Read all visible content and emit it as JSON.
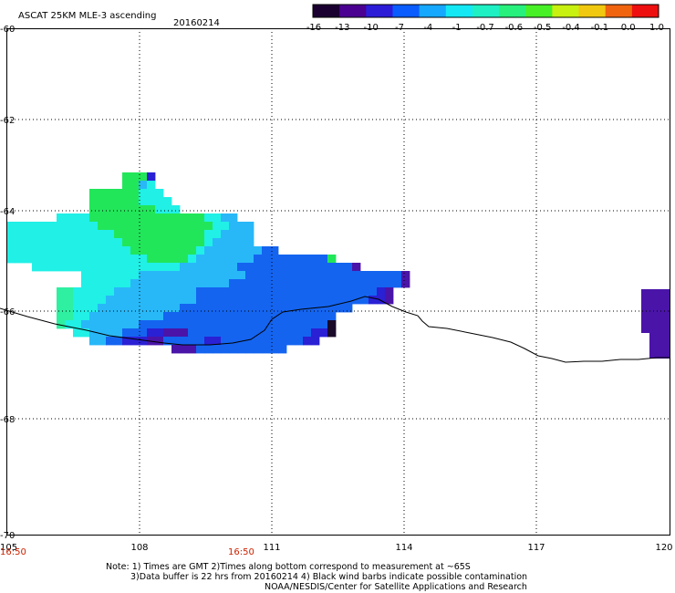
{
  "header": {
    "title": "ASCAT 25KM MLE-3 ascending",
    "date": "20160214"
  },
  "colorbar": {
    "labels": [
      "-16",
      "-13",
      "-10",
      "-7",
      "-4",
      "-1",
      "-0.7",
      "-0.6",
      "-0.5",
      "-0.4",
      "-0.1",
      "0.0",
      "1.0"
    ],
    "colors": [
      "#1a0030",
      "#4a0090",
      "#2c1cd8",
      "#0a5cff",
      "#16a8ff",
      "#14e8f4",
      "#1ef0c4",
      "#28f07c",
      "#48f028",
      "#c8f010",
      "#f0c810",
      "#f06410",
      "#ee1010"
    ]
  },
  "axes": {
    "lon_labels": [
      "105",
      "108",
      "111",
      "114",
      "117",
      "120"
    ],
    "lat_labels": [
      "-60",
      "-62",
      "-64",
      "-66",
      "-68",
      "-70"
    ],
    "time_labels": [
      "16:50",
      "16:50"
    ]
  },
  "notes": {
    "line1": "Note: 1) Times are GMT 2)Times along bottom correspond to measurement at ~65S",
    "line2": "3)Data buffer is 22 hrs from 20160214 4) Black wind barbs indicate possible contamination",
    "line3": "NOAA/NESDIS/Center for Satellite Applications and Research"
  },
  "palette": {
    "green": "#22e65a",
    "light_green": "#2ef0a0",
    "cyan": "#20f0e6",
    "light_blue": "#28b8f8",
    "blue": "#1464f0",
    "dark_blue": "#2a20d4",
    "violet": "#4a14a8",
    "dark": "#1a0a2a"
  }
}
